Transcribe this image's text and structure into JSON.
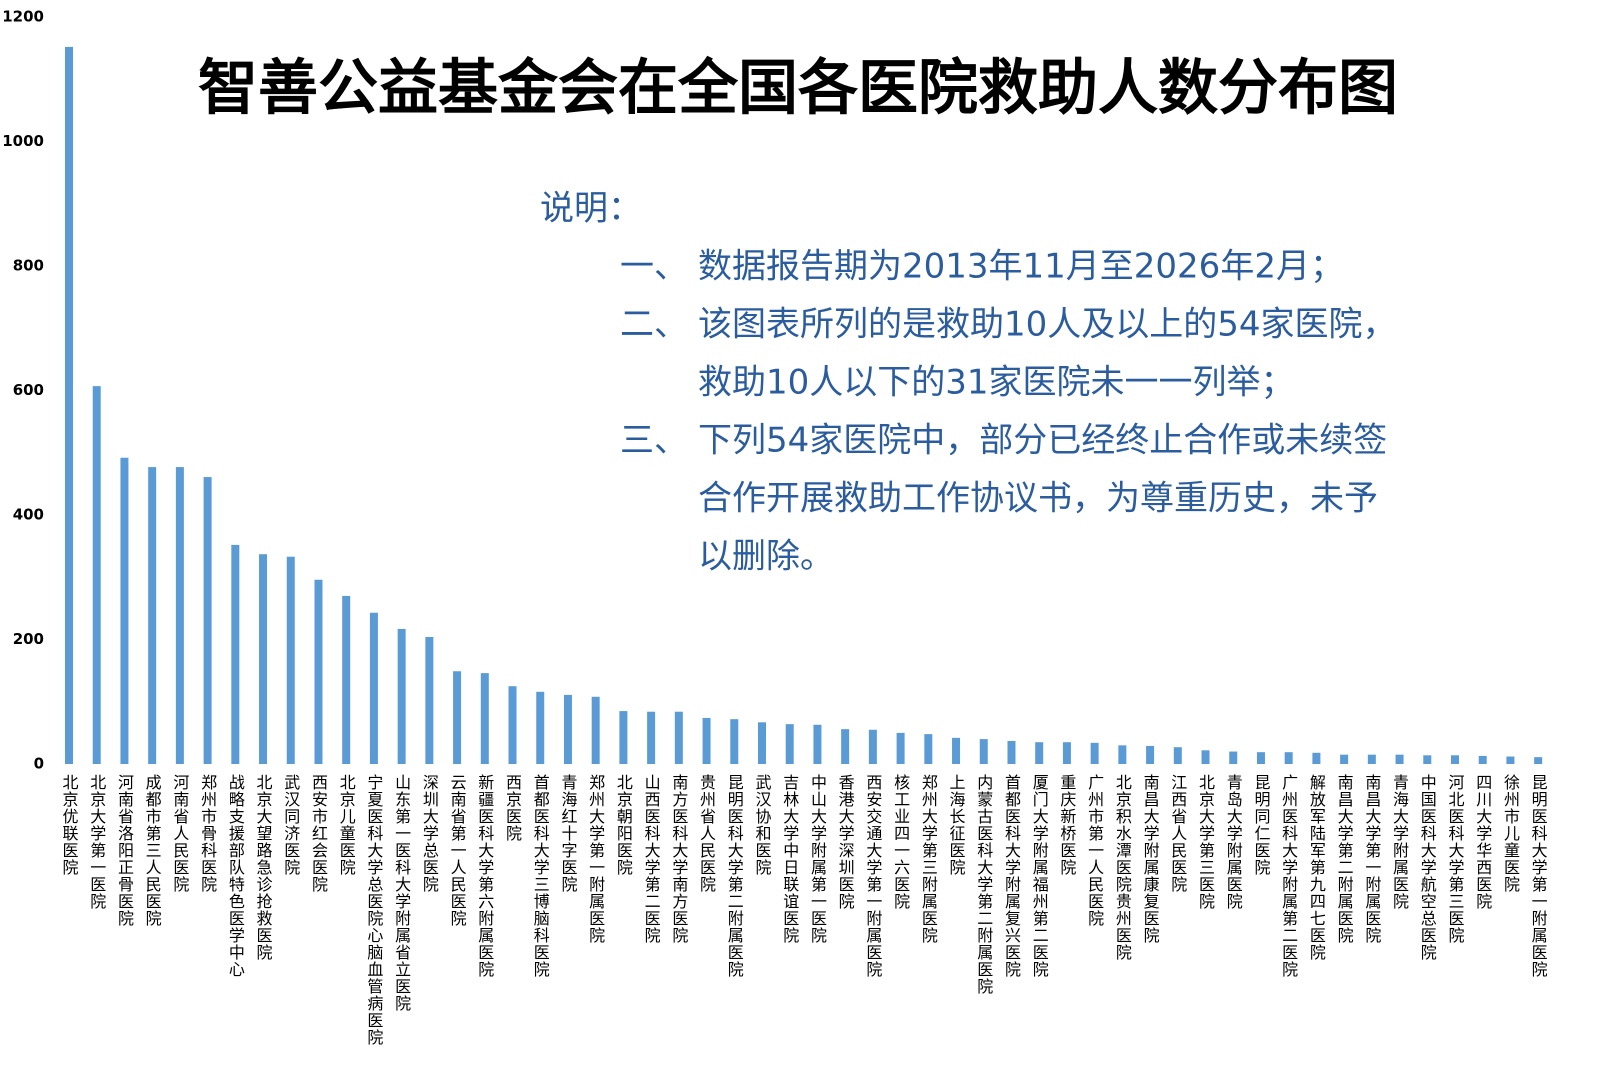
{
  "chart_data": {
    "type": "bar",
    "title": "智善公益基金会在全国各医院救助人数分布图",
    "notes": {
      "heading": "说明：",
      "items": [
        {
          "marker": "一、",
          "lines": [
            "数据报告期为2013年11月至2026年2月；"
          ]
        },
        {
          "marker": "二、",
          "lines": [
            "该图表所列的是救助10人及以上的54家医院，",
            "救助10人以下的31家医院未一一列举；"
          ]
        },
        {
          "marker": "三、",
          "lines": [
            "下列54家医院中，部分已经终止合作或未续签",
            "合作开展救助工作协议书，为尊重历史，未予",
            "以删除。"
          ]
        }
      ]
    },
    "categories": [
      "北京优联医院",
      "北京大学第一医院",
      "河南省洛阳正骨医院",
      "成都市第三人民医院",
      "河南省人民医院",
      "郑州市骨科医院",
      "战略支援部队特色医学中心",
      "北京大望路急诊抢救医院",
      "武汉同济医院",
      "西安市红会医院",
      "北京儿童医院",
      "宁夏医科大学总医院心脑血管病医院",
      "山东第一医科大学附属省立医院",
      "深圳大学总医院",
      "云南省第一人民医院",
      "新疆医科大学第六附属医院",
      "西京医院",
      "首都医科大学三博脑科医院",
      "青海红十字医院",
      "郑州大学第一附属医院",
      "北京朝阳医院",
      "山西医科大学第二医院",
      "南方医科大学南方医院",
      "贵州省人民医院",
      "昆明医科大学第二附属医院",
      "武汉协和医院",
      "吉林大学中日联谊医院",
      "中山大学附属第一医院",
      "香港大学深圳医院",
      "西安交通大学第一附属医院",
      "核工业四一六医院",
      "郑州大学第三附属医院",
      "上海长征医院",
      "内蒙古医科大学第二附属医院",
      "首都医科大学附属复兴医院",
      "厦门大学附属福州第二医院",
      "重庆新桥医院",
      "广州市第一人民医院",
      "北京积水潭医院贵州医院",
      "南昌大学附属康复医院",
      "江西省人民医院",
      "北京大学第三医院",
      "青岛大学附属医院",
      "昆明同仁医院",
      "广州医科大学附属第二医院",
      "解放军陆军第九四七医院",
      "南昌大学第二附属医院",
      "南昌大学第一附属医院",
      "青海大学附属医院",
      "中国医科大学航空总医院",
      "河北医科大学第三医院",
      "四川大学华西医院",
      "徐州市儿童医院",
      "昆明医科大学第一附属医院"
    ],
    "values": [
      1152,
      607,
      492,
      477,
      477,
      461,
      352,
      337,
      333,
      296,
      270,
      243,
      217,
      204,
      149,
      146,
      125,
      116,
      111,
      108,
      85,
      84,
      84,
      74,
      72,
      67,
      64,
      63,
      56,
      55,
      50,
      48,
      42,
      40,
      37,
      35,
      35,
      34,
      30,
      29,
      27,
      22,
      20,
      19,
      19,
      18,
      15,
      15,
      15,
      14,
      14,
      13,
      12,
      11
    ],
    "color": "#5b9bd5",
    "ylim": [
      0,
      1200
    ],
    "yticks": [
      0,
      200,
      400,
      600,
      800,
      1000,
      1200
    ],
    "grid": false
  }
}
